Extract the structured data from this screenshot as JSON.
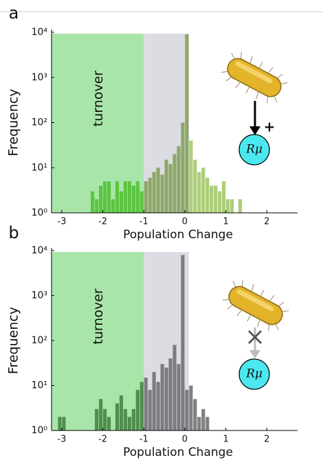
{
  "chart_data": [
    {
      "type": "histogram",
      "panel_label": "a",
      "xlabel": "Population Change",
      "ylabel": "Frequency",
      "xlim": [
        -3.25,
        2.75
      ],
      "xticks": [
        {
          "value": -3,
          "label": "-3"
        },
        {
          "value": -2,
          "label": "-2"
        },
        {
          "value": -1,
          "label": "-1"
        },
        0,
        1,
        2
      ],
      "ylim": [
        1,
        10000
      ],
      "log_y": true,
      "yticks": [
        {
          "value": 1,
          "label": "10⁰"
        },
        {
          "value": 10,
          "label": "10¹"
        },
        {
          "value": 100,
          "label": "10²"
        },
        {
          "value": 1000,
          "label": "10³"
        },
        {
          "value": 10000,
          "label": "10⁴"
        }
      ],
      "shaded_regions": [
        {
          "label": "turnover",
          "x": [
            -3.25,
            -1
          ],
          "color": "#a9e5a9"
        },
        {
          "x": [
            -1,
            0.1
          ],
          "color": "#dcdce3"
        }
      ],
      "series": [
        {
          "color": "#4fbf2e",
          "bins": [
            -2.4,
            -2.3,
            -2.2,
            -2.1,
            -2.0,
            -1.9,
            -1.8,
            -1.7,
            -1.6,
            -1.5,
            -1.4,
            -1.3,
            -1.2,
            -1.1,
            -1.0
          ],
          "values": [
            1,
            3,
            2,
            4,
            5,
            5,
            2,
            5,
            3,
            5,
            5,
            4,
            5,
            3
          ]
        },
        {
          "color": "#7f9e52",
          "bins": [
            -1.0,
            -0.9,
            -0.8,
            -0.7,
            -0.6,
            -0.5,
            -0.4,
            -0.3,
            -0.2,
            -0.1,
            0.0,
            0.1
          ],
          "values": [
            5,
            6,
            8,
            10,
            7,
            15,
            12,
            20,
            30,
            100,
            9000
          ]
        },
        {
          "color": "#9dc462",
          "bins": [
            0.1,
            0.2,
            0.3,
            0.4,
            0.5,
            0.6,
            0.7,
            0.8,
            0.9,
            1.0,
            1.1,
            1.2,
            1.3,
            1.4,
            1.5
          ],
          "values": [
            40,
            15,
            8,
            10,
            6,
            4,
            4,
            3,
            5,
            2,
            2,
            1,
            2,
            1
          ]
        }
      ],
      "node_label": "Rμ",
      "sign": "+"
    },
    {
      "type": "histogram",
      "panel_label": "b",
      "xlabel": "Population Change",
      "ylabel": "Frequency",
      "xlim": [
        -3.25,
        2.75
      ],
      "xticks": [
        {
          "value": -3,
          "label": "-3"
        },
        {
          "value": -2,
          "label": "-2"
        },
        {
          "value": -1,
          "label": "-1"
        },
        0,
        1,
        2
      ],
      "ylim": [
        1,
        10000
      ],
      "log_y": true,
      "yticks": [
        {
          "value": 1,
          "label": "10⁰"
        },
        {
          "value": 10,
          "label": "10¹"
        },
        {
          "value": 100,
          "label": "10²"
        },
        {
          "value": 1000,
          "label": "10³"
        },
        {
          "value": 10000,
          "label": "10⁴"
        }
      ],
      "shaded_regions": [
        {
          "label": "turnover",
          "x": [
            -3.25,
            -1
          ],
          "color": "#a9e5a9"
        },
        {
          "x": [
            -1,
            0.1
          ],
          "color": "#dcdce3"
        }
      ],
      "series": [
        {
          "color": "#3f7f3f",
          "bins": [
            -3.1,
            -3.0,
            -2.9,
            -2.8,
            -2.7,
            -2.6,
            -2.5,
            -2.4,
            -2.3,
            -2.2,
            -2.1,
            -2.0,
            -1.9,
            -1.8,
            -1.7,
            -1.6,
            -1.5,
            -1.4,
            -1.3,
            -1.2,
            -1.1,
            -1.0
          ],
          "values": [
            2,
            2,
            0,
            0,
            0,
            0,
            0,
            0,
            0,
            3,
            5,
            3,
            2,
            0,
            4,
            6,
            3,
            2,
            3,
            8,
            12
          ]
        },
        {
          "color": "#6b6b6f",
          "bins": [
            -1.0,
            -0.9,
            -0.8,
            -0.7,
            -0.6,
            -0.5,
            -0.4,
            -0.3,
            -0.2,
            -0.1,
            0.0,
            0.1,
            0.2,
            0.3,
            0.4,
            0.5,
            0.6,
            0.7,
            0.8,
            0.9,
            1.0
          ],
          "values": [
            15,
            8,
            20,
            12,
            30,
            25,
            40,
            80,
            30,
            8000,
            8,
            10,
            5,
            2,
            3,
            2,
            1,
            0,
            0,
            1
          ]
        }
      ],
      "node_label": "Rμ"
    }
  ]
}
